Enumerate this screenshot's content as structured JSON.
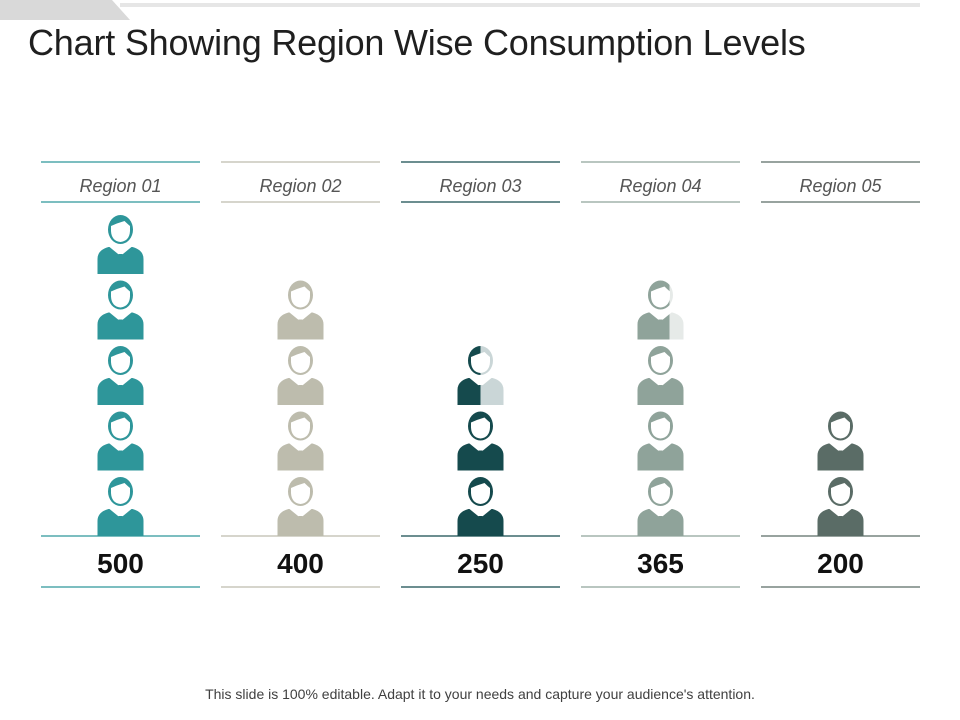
{
  "title": "Chart Showing Region Wise Consumption Levels",
  "footer": "This slide is 100% editable. Adapt it to your needs and capture your audience's attention.",
  "chart_data": {
    "type": "bar",
    "title": "Chart Showing Region Wise Consumption Levels",
    "unit_per_icon": 100,
    "categories": [
      "Region 01",
      "Region 02",
      "Region 03",
      "Region 04",
      "Region 05"
    ],
    "values": [
      500,
      400,
      250,
      365,
      200
    ],
    "value_labels": [
      "500",
      "400",
      "250",
      "365",
      "200"
    ],
    "colors": [
      "#2e969a",
      "#bdbcad",
      "#154a4d",
      "#8fa39a",
      "#5a6c66"
    ]
  }
}
